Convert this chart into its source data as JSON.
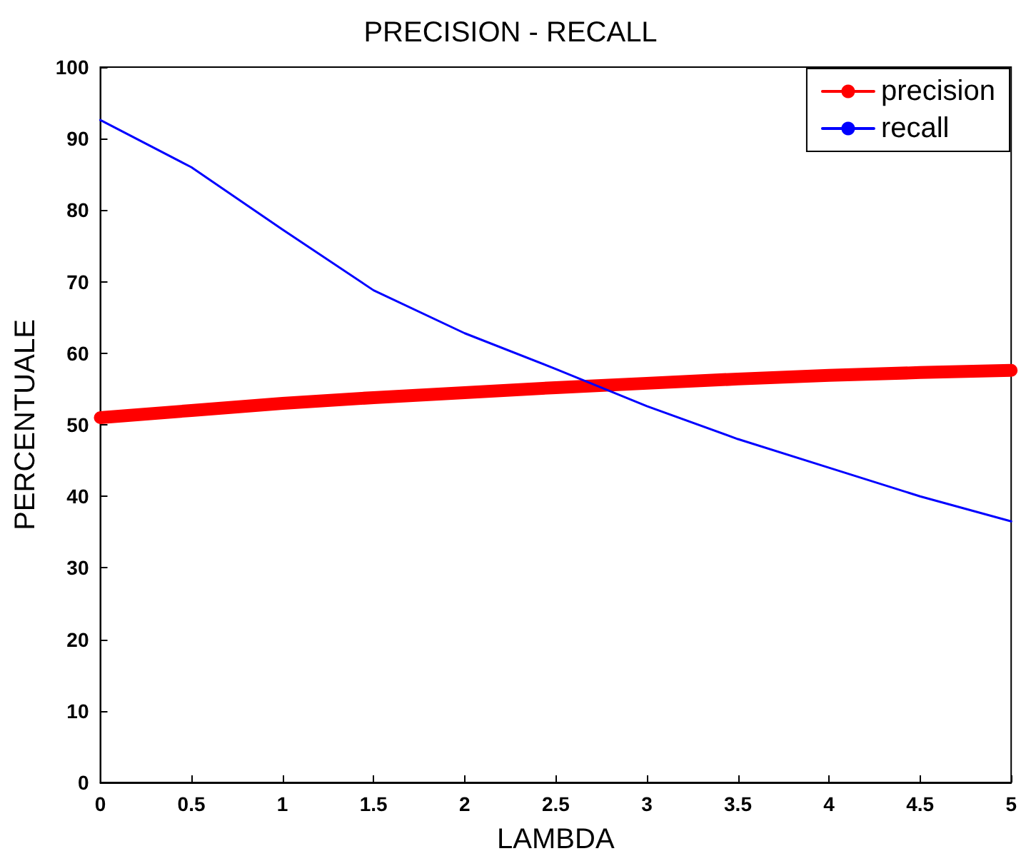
{
  "chart_data": {
    "type": "line",
    "title": "PRECISION - RECALL",
    "xlabel": "LAMBDA",
    "ylabel": "PERCENTUALE",
    "x": [
      0,
      0.5,
      1,
      1.5,
      2,
      2.5,
      3,
      3.5,
      4,
      4.5,
      5
    ],
    "series": [
      {
        "name": "precision",
        "color": "#ff0000",
        "values": [
          51,
          52,
          53,
          53.8,
          54.5,
          55.2,
          55.8,
          56.4,
          56.9,
          57.3,
          57.6
        ]
      },
      {
        "name": "recall",
        "color": "#0000ff",
        "values": [
          92.6,
          86,
          77.3,
          68.8,
          62.8,
          57.8,
          52.6,
          48,
          44,
          40,
          36.5
        ]
      }
    ],
    "xlim": [
      0,
      5
    ],
    "xticks": [
      0,
      0.5,
      1,
      1.5,
      2,
      2.5,
      3,
      3.5,
      4,
      4.5,
      5
    ],
    "ylim": [
      0,
      100
    ],
    "yticks": [
      0,
      10,
      20,
      30,
      40,
      50,
      60,
      70,
      80,
      90,
      100
    ],
    "grid": false,
    "legend": "top right",
    "marker": "none",
    "line_style": "solid"
  }
}
